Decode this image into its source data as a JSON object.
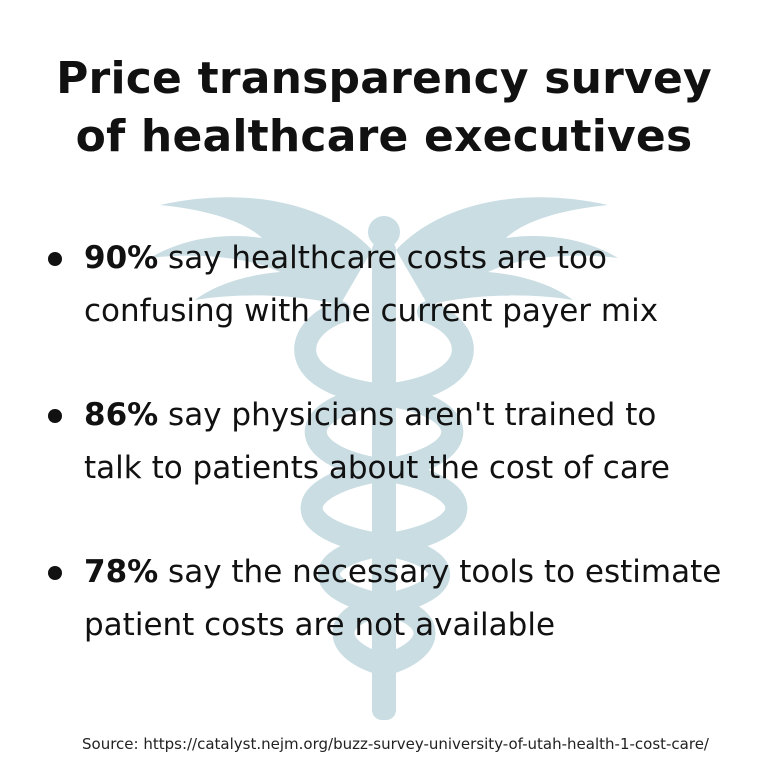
{
  "title": {
    "line1": "Price transparency survey",
    "line2": "of healthcare executives"
  },
  "bullets": [
    {
      "percent": "90%",
      "line1_rest": " say healthcare costs are too",
      "line2": "confusing with the current payer mix"
    },
    {
      "percent": "86%",
      "line1_rest": " say physicians aren't trained to",
      "line2": "talk to patients about the cost of care"
    },
    {
      "percent": "78%",
      "line1_rest": " say the necessary tools to estimate",
      "line2": "patient costs are not available"
    }
  ],
  "source": "Source: https://catalyst.nejm.org/buzz-survey-university-of-utah-health-1-cost-care/",
  "colors": {
    "background": "#ffffff",
    "text": "#111111",
    "watermark": "#c9dde3"
  },
  "background_icon": "caduceus-icon"
}
